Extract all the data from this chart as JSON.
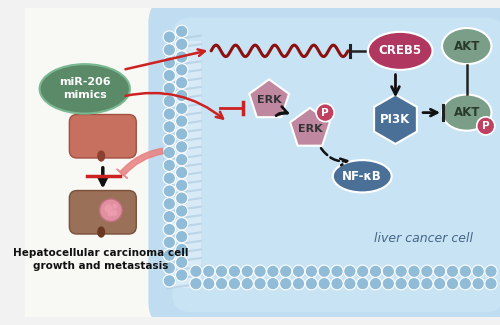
{
  "bg_color": "#f0f0f0",
  "cell_bg_top": "#b8d8ee",
  "cell_bg_bottom": "#c8e4f4",
  "membrane_bead_color": "#90bcd8",
  "membrane_stripe_color": "#d0e8f8",
  "mir206_box_color": "#5a8a68",
  "mir206_text": "miR-206\nmimics",
  "creb5_color": "#b03860",
  "creb5_text": "CREB5",
  "pi3k_color": "#4a7098",
  "pi3k_text": "PI3K",
  "akt_top_color": "#7a9e88",
  "akt_top_text": "AKT",
  "akt_bottom_color": "#7a9e88",
  "akt_bottom_text": "AKT",
  "p_label_color": "#c04060",
  "erk_color": "#c088a0",
  "nfkb_color": "#4a7098",
  "nfkb_text": "NF-κB",
  "liver_cancer_text": "liver cancer cell",
  "hcc_text": "Hepatocellular carcinoma cell\ngrowth and metastasis",
  "arrow_red": "#cc2222",
  "arrow_black": "#111111",
  "wavy_color": "#8B1010",
  "wavy_line_color": "#a01818"
}
